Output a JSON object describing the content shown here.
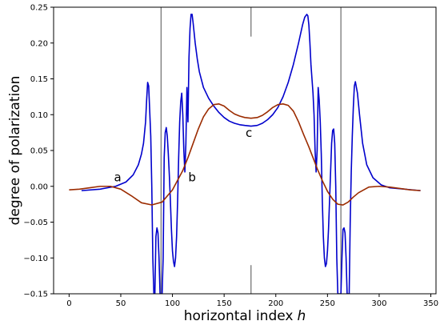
{
  "chart_data": {
    "type": "line",
    "xlabel": "horizontal index",
    "xlabel_var": "h",
    "ylabel": "degree of polarization",
    "xlim": [
      -15,
      355
    ],
    "ylim": [
      -0.15,
      0.25
    ],
    "xticks": [
      0,
      50,
      100,
      150,
      200,
      250,
      300,
      350
    ],
    "yticks": [
      -0.15,
      -0.1,
      -0.05,
      0.0,
      0.05,
      0.1,
      0.15,
      0.2,
      0.25
    ],
    "ytick_labels": [
      "−0.15",
      "−0.10",
      "−0.05",
      "0.00",
      "0.05",
      "0.10",
      "0.15",
      "0.20",
      "0.25"
    ],
    "grid": false,
    "legend": "none",
    "vertical_lines": [
      {
        "x": 89,
        "full": true
      },
      {
        "x": 176,
        "full": false,
        "segments": [
          [
            0.209,
            0.25
          ],
          [
            -0.15,
            -0.11
          ]
        ]
      },
      {
        "x": 263,
        "full": true
      }
    ],
    "annotations": [
      {
        "text": "a",
        "x": 47,
        "y": 0.007
      },
      {
        "text": "b",
        "x": 119,
        "y": 0.007
      },
      {
        "text": "c",
        "x": 174,
        "y": 0.069
      }
    ],
    "series": [
      {
        "color": "#0000cc",
        "x": [
          12,
          30,
          45,
          55,
          62,
          67,
          70,
          72,
          74,
          75,
          76,
          77,
          79,
          80,
          81,
          82,
          83,
          84,
          85,
          86,
          87,
          88,
          89,
          90,
          91,
          92,
          93,
          94,
          95,
          96,
          97,
          98,
          99,
          100,
          101,
          102,
          103,
          104,
          105,
          106,
          107,
          108,
          109,
          110,
          111,
          112,
          113,
          114,
          115,
          116,
          117,
          118,
          119,
          120,
          121,
          122,
          124,
          126,
          130,
          135,
          140,
          145,
          150,
          155,
          160,
          165,
          170,
          176,
          182,
          187,
          192,
          197,
          202,
          207,
          212,
          217,
          222,
          226,
          228,
          230,
          231,
          232,
          233,
          234,
          235,
          236,
          237,
          238,
          239,
          240,
          241,
          242,
          243,
          244,
          245,
          246,
          247,
          248,
          249,
          250,
          251,
          252,
          253,
          254,
          255,
          256,
          257,
          258,
          259,
          260,
          261,
          262,
          263,
          264,
          265,
          266,
          267,
          268,
          269,
          270,
          271,
          272,
          273,
          274,
          275,
          276,
          277,
          279,
          281,
          284,
          288,
          294,
          302,
          310,
          325,
          340
        ],
        "y": [
          -0.006,
          -0.004,
          0.0,
          0.006,
          0.016,
          0.03,
          0.045,
          0.06,
          0.09,
          0.12,
          0.145,
          0.14,
          0.07,
          0.0,
          -0.1,
          -0.15,
          -0.15,
          -0.07,
          -0.058,
          -0.065,
          -0.1,
          -0.15,
          -0.15,
          -0.15,
          -0.1,
          0.04,
          0.075,
          0.082,
          0.07,
          0.045,
          0.015,
          -0.02,
          -0.06,
          -0.09,
          -0.105,
          -0.112,
          -0.1,
          -0.07,
          -0.02,
          0.04,
          0.09,
          0.118,
          0.13,
          0.1,
          0.05,
          0.02,
          0.06,
          0.138,
          0.09,
          0.18,
          0.22,
          0.24,
          0.24,
          0.228,
          0.214,
          0.2,
          0.178,
          0.16,
          0.138,
          0.123,
          0.112,
          0.103,
          0.096,
          0.091,
          0.088,
          0.086,
          0.085,
          0.084,
          0.085,
          0.088,
          0.093,
          0.1,
          0.11,
          0.125,
          0.145,
          0.17,
          0.2,
          0.226,
          0.236,
          0.24,
          0.238,
          0.225,
          0.2,
          0.17,
          0.15,
          0.13,
          0.1,
          0.05,
          0.02,
          0.05,
          0.138,
          0.12,
          0.09,
          0.045,
          -0.02,
          -0.07,
          -0.1,
          -0.112,
          -0.108,
          -0.09,
          -0.06,
          -0.02,
          0.02,
          0.06,
          0.078,
          0.08,
          0.06,
          0.0,
          -0.1,
          -0.15,
          -0.15,
          -0.15,
          -0.15,
          -0.1,
          -0.06,
          -0.058,
          -0.065,
          -0.1,
          -0.15,
          -0.15,
          -0.15,
          -0.05,
          0.02,
          0.07,
          0.11,
          0.14,
          0.146,
          0.13,
          0.1,
          0.06,
          0.03,
          0.012,
          0.002,
          -0.002,
          -0.004,
          -0.006
        ]
      },
      {
        "color": "#9b2b00",
        "x": [
          0,
          10,
          20,
          30,
          40,
          50,
          60,
          70,
          80,
          90,
          100,
          110,
          115,
          120,
          125,
          130,
          135,
          140,
          145,
          150,
          155,
          160,
          165,
          170,
          176,
          182,
          187,
          192,
          197,
          202,
          207,
          212,
          217,
          222,
          227,
          232,
          236,
          240,
          245,
          250,
          255,
          260,
          265,
          270,
          275,
          280,
          290,
          300,
          310,
          320,
          330,
          340
        ],
        "y": [
          -0.005,
          -0.004,
          -0.002,
          0.0,
          0.0,
          -0.004,
          -0.013,
          -0.023,
          -0.026,
          -0.022,
          -0.005,
          0.022,
          0.04,
          0.06,
          0.08,
          0.097,
          0.108,
          0.114,
          0.115,
          0.112,
          0.106,
          0.101,
          0.098,
          0.096,
          0.095,
          0.096,
          0.099,
          0.104,
          0.11,
          0.114,
          0.115,
          0.113,
          0.105,
          0.09,
          0.072,
          0.055,
          0.04,
          0.025,
          0.008,
          -0.007,
          -0.018,
          -0.025,
          -0.026,
          -0.022,
          -0.015,
          -0.009,
          -0.001,
          0.0,
          -0.001,
          -0.003,
          -0.005,
          -0.006
        ]
      }
    ]
  }
}
